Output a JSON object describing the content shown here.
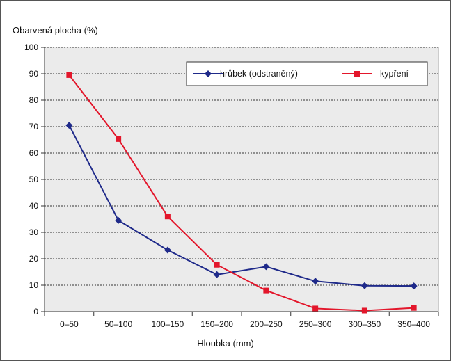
{
  "chart_data": {
    "type": "line",
    "xlabel": "Hloubka (mm)",
    "ylabel": "Obarvená plocha (%)",
    "ylim": [
      0,
      100
    ],
    "yticks": [
      "0",
      "10",
      "20",
      "30",
      "40",
      "50",
      "60",
      "70",
      "80",
      "90",
      "100"
    ],
    "categories": [
      "0–50",
      "50–100",
      "100–150",
      "150–200",
      "200–250",
      "250–300",
      "300–350",
      "350–400"
    ],
    "grid": true,
    "legend": "top-right",
    "series": [
      {
        "name": "hrůbek (odstraněný)",
        "color": "#1f2a8a",
        "marker": "diamond",
        "values": [
          70.5,
          34.5,
          23.3,
          14.0,
          17.0,
          11.5,
          9.8,
          9.7
        ]
      },
      {
        "name": "kypření",
        "color": "#e3162b",
        "marker": "square",
        "values": [
          89.5,
          65.3,
          36.0,
          17.7,
          8.0,
          1.2,
          0.4,
          1.4
        ]
      }
    ]
  }
}
